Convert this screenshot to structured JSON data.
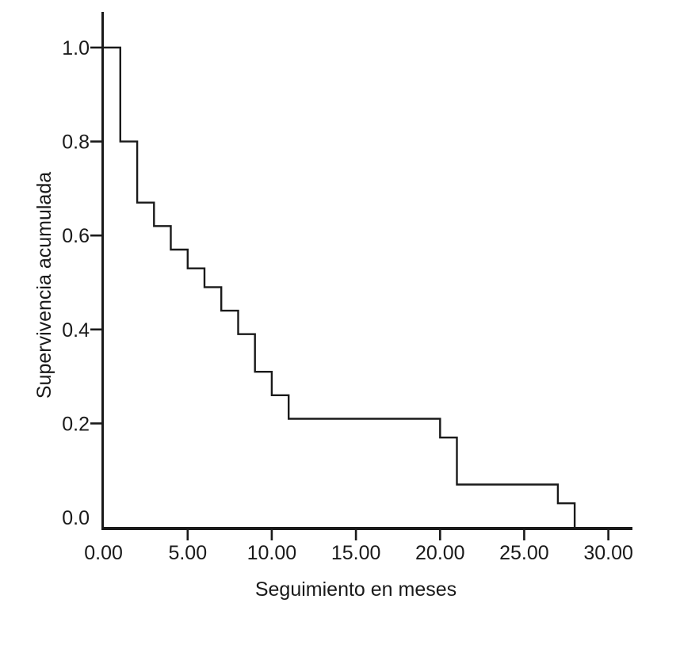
{
  "page": {
    "background": "#ffffff",
    "line_color": "#1a1a1a"
  },
  "chart_data": {
    "type": "line",
    "subtype": "kaplan-meier-step",
    "title": "",
    "xlabel": "Seguimiento en meses",
    "ylabel": "Supervivencia acumulada",
    "grid": false,
    "legend": false,
    "xlim": [
      0,
      31.5
    ],
    "ylim": [
      0.0,
      1.0
    ],
    "x_ticks": [
      {
        "value": 0,
        "label": "0.00"
      },
      {
        "value": 5,
        "label": "5.00"
      },
      {
        "value": 10,
        "label": "10.00"
      },
      {
        "value": 15,
        "label": "15.00"
      },
      {
        "value": 20,
        "label": "20.00"
      },
      {
        "value": 25,
        "label": "25.00"
      },
      {
        "value": 30,
        "label": "30.00"
      }
    ],
    "y_ticks": [
      {
        "value": 0.0,
        "label": "0.0"
      },
      {
        "value": 0.2,
        "label": "0.2"
      },
      {
        "value": 0.4,
        "label": "0.4"
      },
      {
        "value": 0.6,
        "label": "0.6"
      },
      {
        "value": 0.8,
        "label": "0.8"
      },
      {
        "value": 1.0,
        "label": "1.0"
      }
    ],
    "series": [
      {
        "name": "Supervivencia acumulada",
        "times": [
          0,
          1,
          2,
          3,
          4,
          5,
          6,
          7,
          8,
          9,
          10,
          11,
          20,
          21,
          27,
          28
        ],
        "survival": [
          1.0,
          0.8,
          0.67,
          0.62,
          0.57,
          0.53,
          0.49,
          0.44,
          0.39,
          0.31,
          0.26,
          0.21,
          0.17,
          0.07,
          0.03,
          0.0
        ]
      }
    ]
  }
}
